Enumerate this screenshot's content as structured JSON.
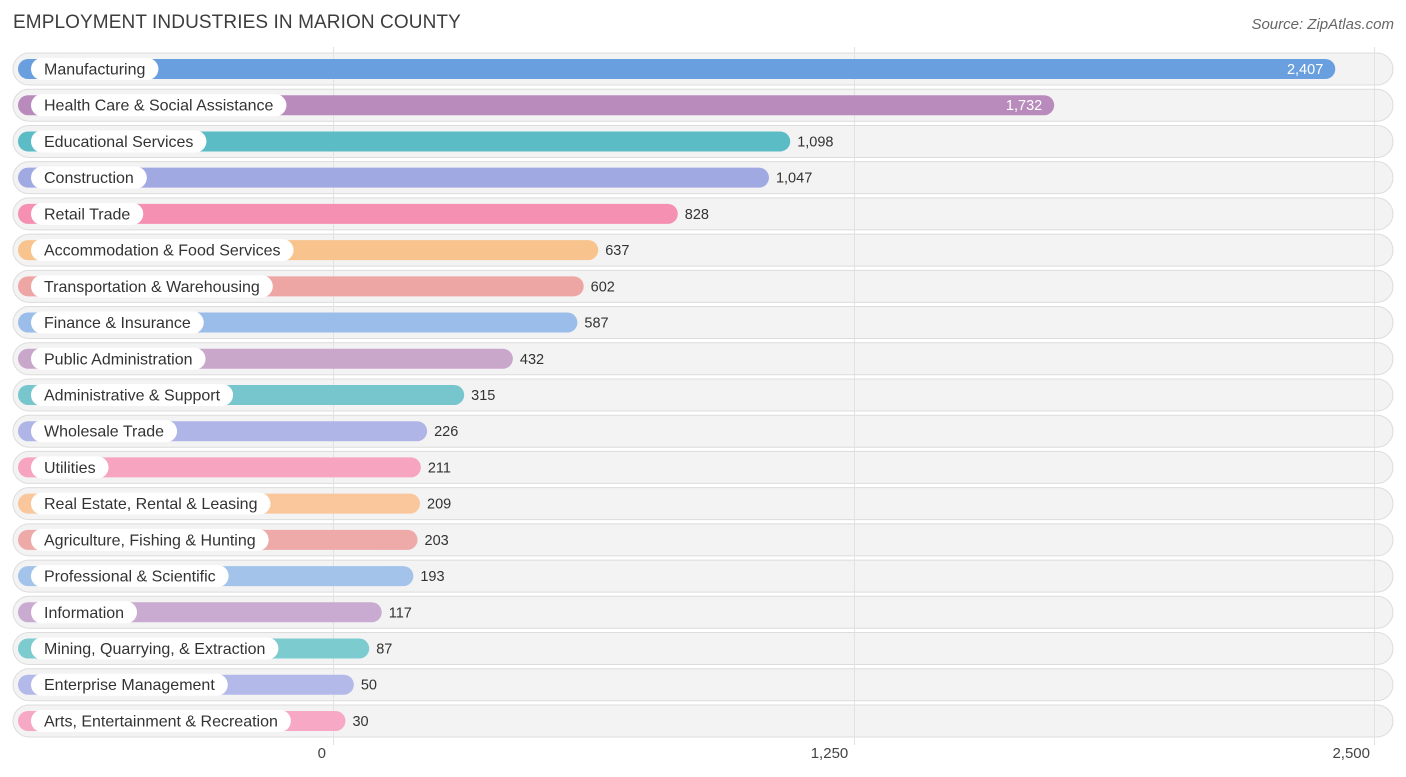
{
  "chart_data": {
    "type": "bar",
    "orientation": "horizontal",
    "title": "EMPLOYMENT INDUSTRIES IN MARION COUNTY",
    "source": "Source: ZipAtlas.com",
    "xlabel": "",
    "ylabel": "",
    "xlim": [
      0,
      2500
    ],
    "ticks": [
      0,
      1250,
      2500
    ],
    "tick_labels": [
      "0",
      "1,250",
      "2,500"
    ],
    "grid": true,
    "categories": [
      "Manufacturing",
      "Health Care & Social Assistance",
      "Educational Services",
      "Construction",
      "Retail Trade",
      "Accommodation & Food Services",
      "Transportation & Warehousing",
      "Finance & Insurance",
      "Public Administration",
      "Administrative & Support",
      "Wholesale Trade",
      "Utilities",
      "Real Estate, Rental & Leasing",
      "Agriculture, Fishing & Hunting",
      "Professional & Scientific",
      "Information",
      "Mining, Quarrying, & Extraction",
      "Enterprise Management",
      "Arts, Entertainment & Recreation"
    ],
    "values": [
      2407,
      1732,
      1098,
      1047,
      828,
      637,
      602,
      587,
      432,
      315,
      226,
      211,
      209,
      203,
      193,
      117,
      87,
      50,
      30
    ],
    "value_labels": [
      "2,407",
      "1,732",
      "1,098",
      "1,047",
      "828",
      "637",
      "602",
      "587",
      "432",
      "315",
      "226",
      "211",
      "209",
      "203",
      "193",
      "117",
      "87",
      "50",
      "30"
    ],
    "colors": [
      "#6a9fdf",
      "#b98bbd",
      "#5bbcc6",
      "#a1a9e3",
      "#f590b2",
      "#f9c38e",
      "#eda6a4",
      "#9bbde9",
      "#c9a7cb",
      "#78c6cd",
      "#b0b5e7",
      "#f6a4c0",
      "#f9c79b",
      "#eeaaa8",
      "#a3c3ea",
      "#c9aad0",
      "#7ccbcf",
      "#b3b9e9",
      "#f6a8c4"
    ]
  }
}
